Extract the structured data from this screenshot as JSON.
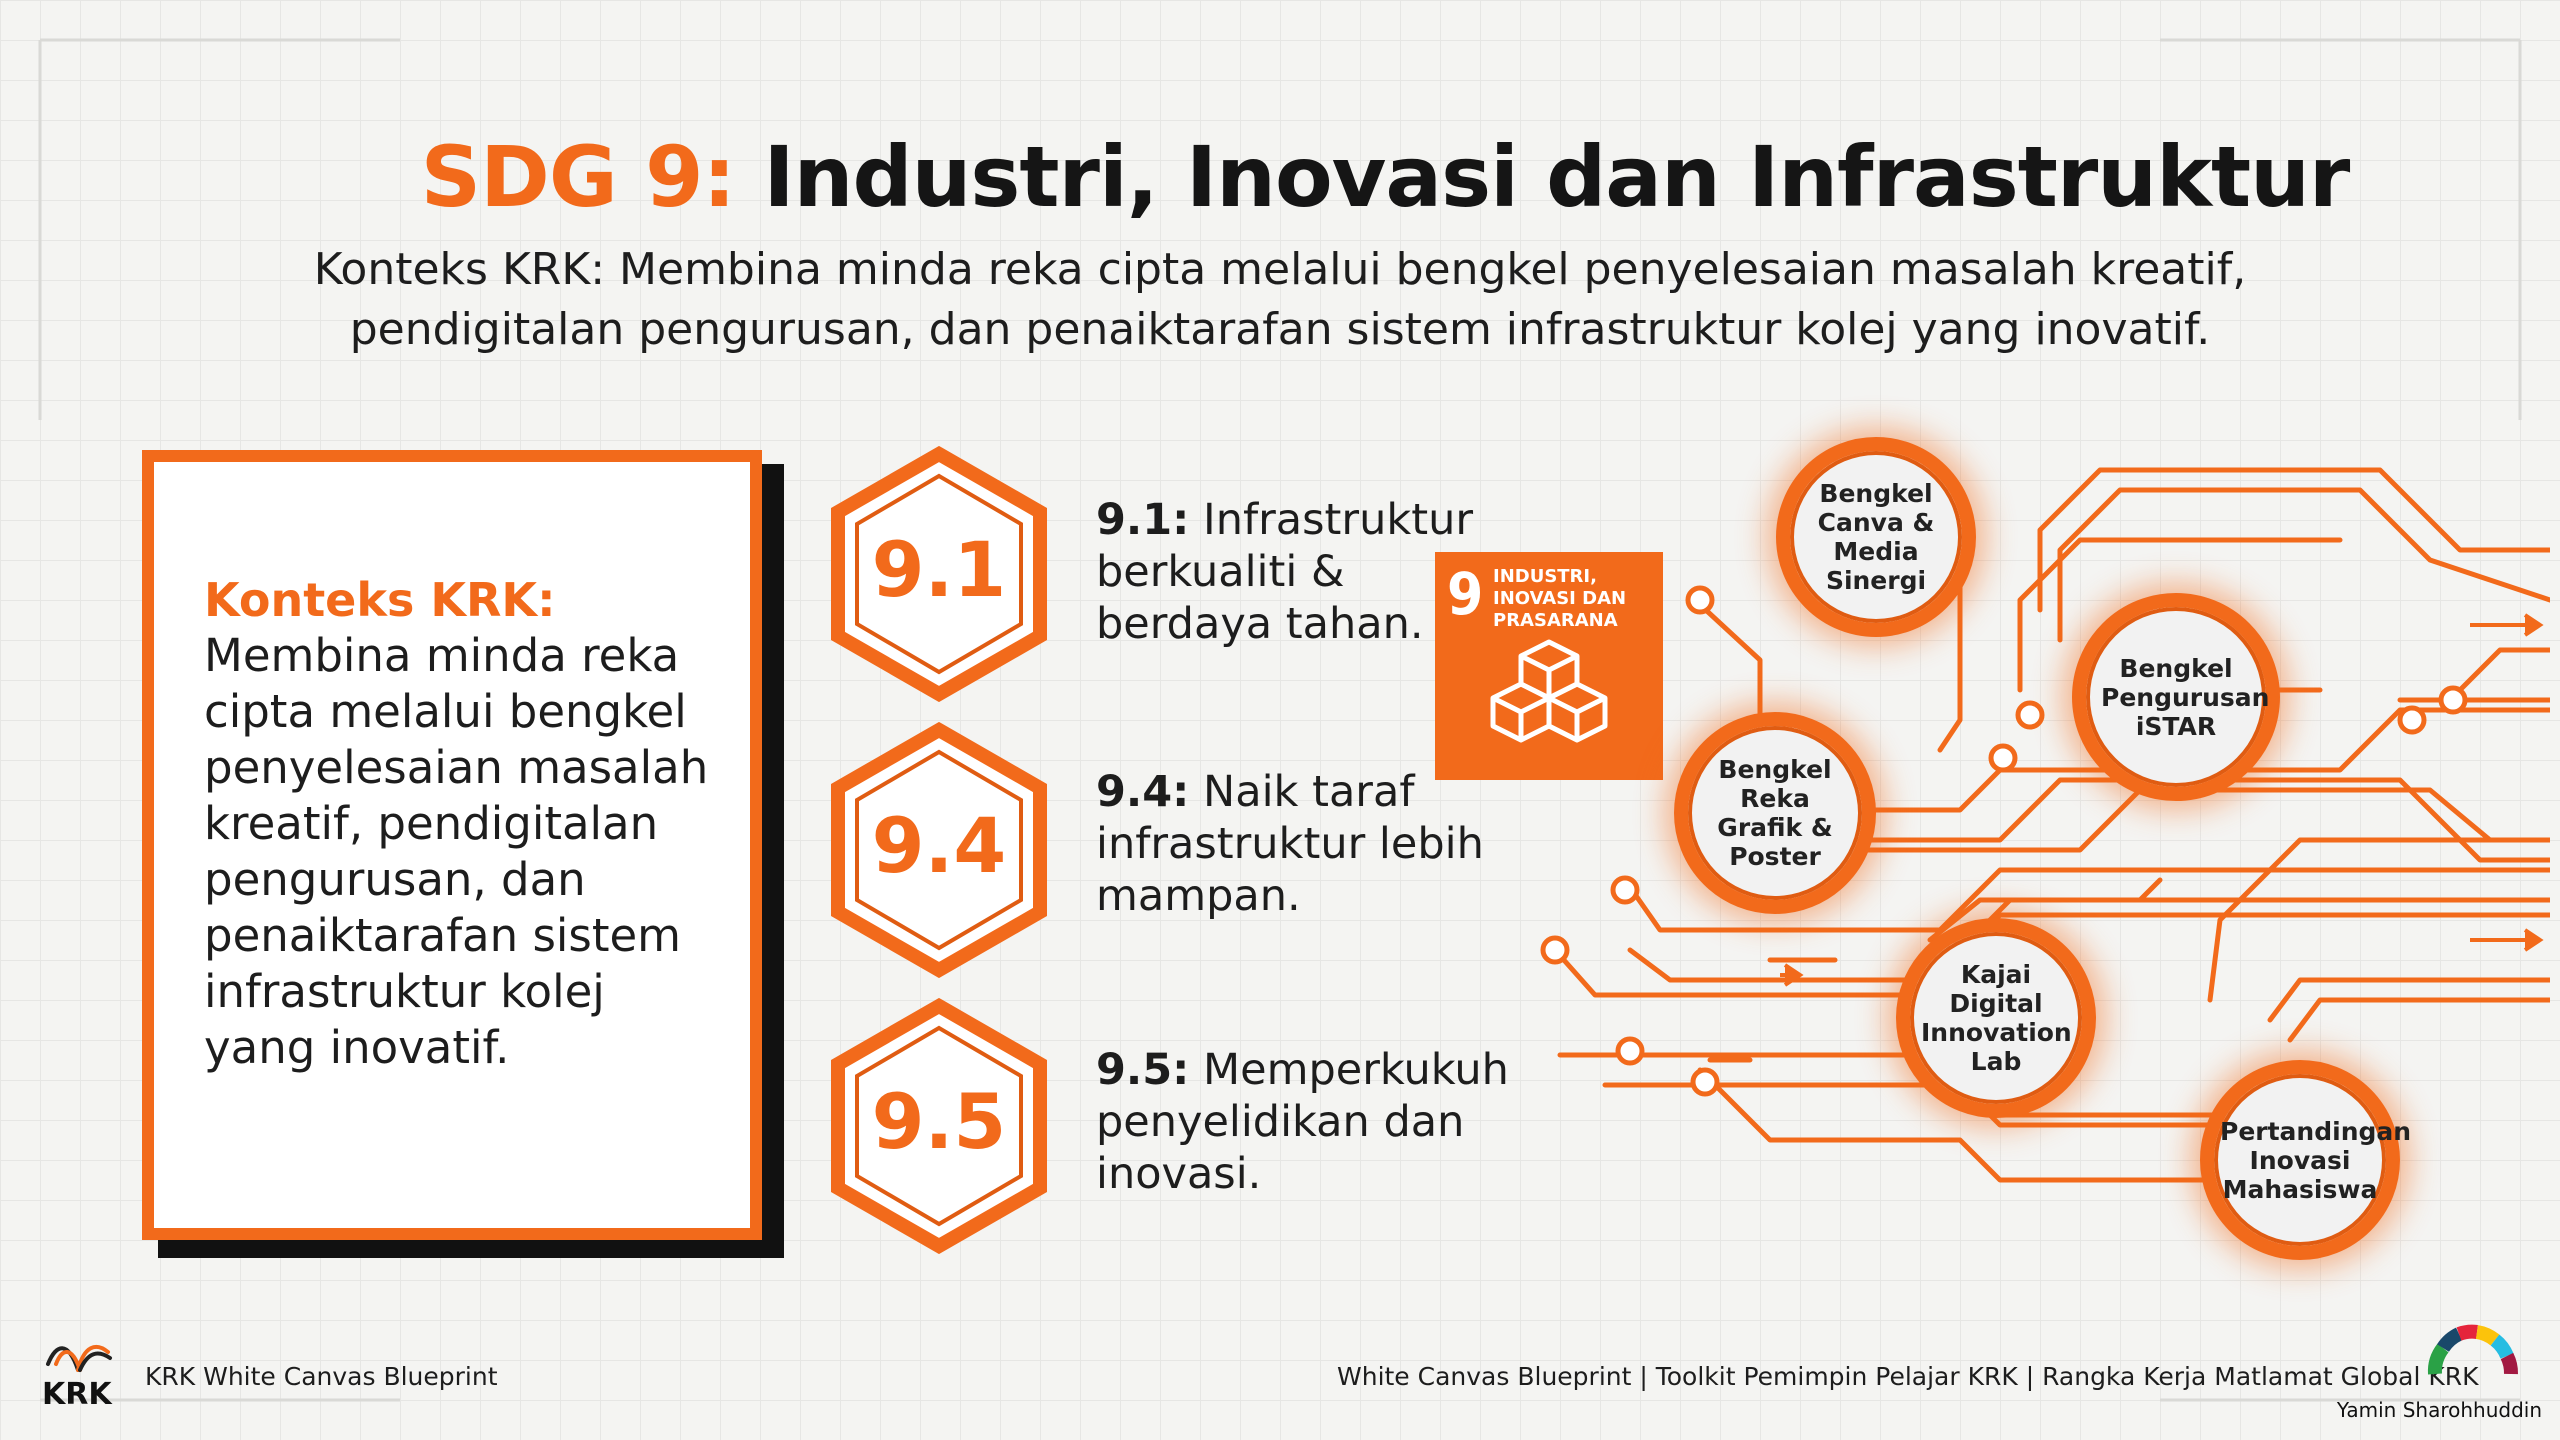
{
  "title": {
    "prefix": "SDG 9:",
    "main": "Industri, Inovasi dan Infrastruktur"
  },
  "subtitle": {
    "line1": "Konteks KRK: Membina minda reka cipta melalui bengkel penyelesaian masalah kreatif,",
    "line2": "pendigitalan pengurusan, dan penaiktarafan sistem infrastruktur kolej yang inovatif."
  },
  "context_card": {
    "heading": "Konteks KRK:",
    "body": "Membina minda reka cipta melalui bengkel penyelesaian masalah kreatif, pendigitalan pengurusan, dan penaiktarafan sistem infrastruktur kolej yang inovatif."
  },
  "targets": [
    {
      "code": "9.1",
      "label": "9.1:",
      "text": "Infrastruktur berkualiti & berdaya tahan."
    },
    {
      "code": "9.4",
      "label": "9.4:",
      "text": "Naik taraf infrastruktur lebih mampan."
    },
    {
      "code": "9.5",
      "label": "9.5:",
      "text": "Memperkukuh penyelidikan dan inovasi."
    }
  ],
  "sdg_badge": {
    "number": "9",
    "label": "INDUSTRI, INOVASI DAN PRASARANA",
    "icon": "stacked-cubes-icon"
  },
  "nodes": [
    "Bengkel Canva & Media Sinergi",
    "Bengkel Pengurusan iSTAR",
    "Bengkel Reka Grafik & Poster",
    "Kajai Digital Innovation Lab",
    "Pertandingan Inovasi Mahasiswa"
  ],
  "footer": {
    "logo_text": "KRK",
    "left": "KRK White Canvas Blueprint",
    "right": "White Canvas Blueprint | Toolkit Pemimpin Pelajar KRK | Rangka Kerja Matlamat Global KRK",
    "credit": "Yamin Sharohhuddin"
  },
  "colors": {
    "accent": "#f26a1b",
    "text": "#151515",
    "background": "#f4f4f2"
  }
}
